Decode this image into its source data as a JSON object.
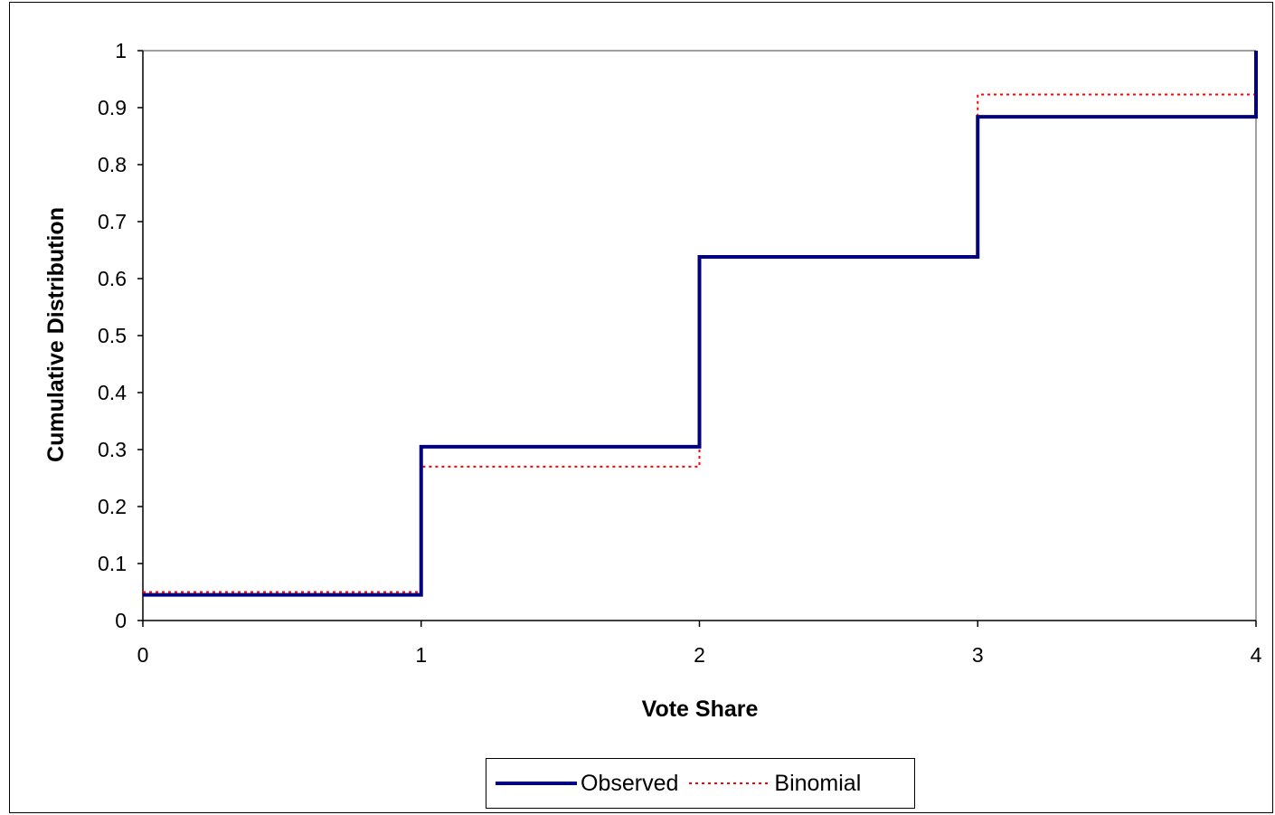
{
  "chart_data": {
    "type": "line",
    "step": true,
    "xlabel": "Vote Share",
    "ylabel": "Cumulative Distribution",
    "xlim": [
      0,
      4
    ],
    "ylim": [
      0,
      1
    ],
    "x_ticks": [
      "0",
      "1",
      "2",
      "3",
      "4"
    ],
    "y_ticks": [
      "0",
      "0.1",
      "0.2",
      "0.3",
      "0.4",
      "0.5",
      "0.6",
      "0.7",
      "0.8",
      "0.9",
      "1"
    ],
    "grid": false,
    "legend_position": "bottom-center",
    "series": [
      {
        "name": "Observed",
        "color": "#000080",
        "style": "solid",
        "x": [
          0,
          1,
          2,
          3,
          4
        ],
        "y": [
          0.045,
          0.305,
          0.638,
          0.884,
          1.0
        ]
      },
      {
        "name": "Binomial",
        "color": "#ff0000",
        "style": "dotted",
        "x": [
          0,
          1,
          2,
          3,
          4
        ],
        "y": [
          0.05,
          0.27,
          0.637,
          0.923,
          1.0
        ]
      }
    ]
  }
}
